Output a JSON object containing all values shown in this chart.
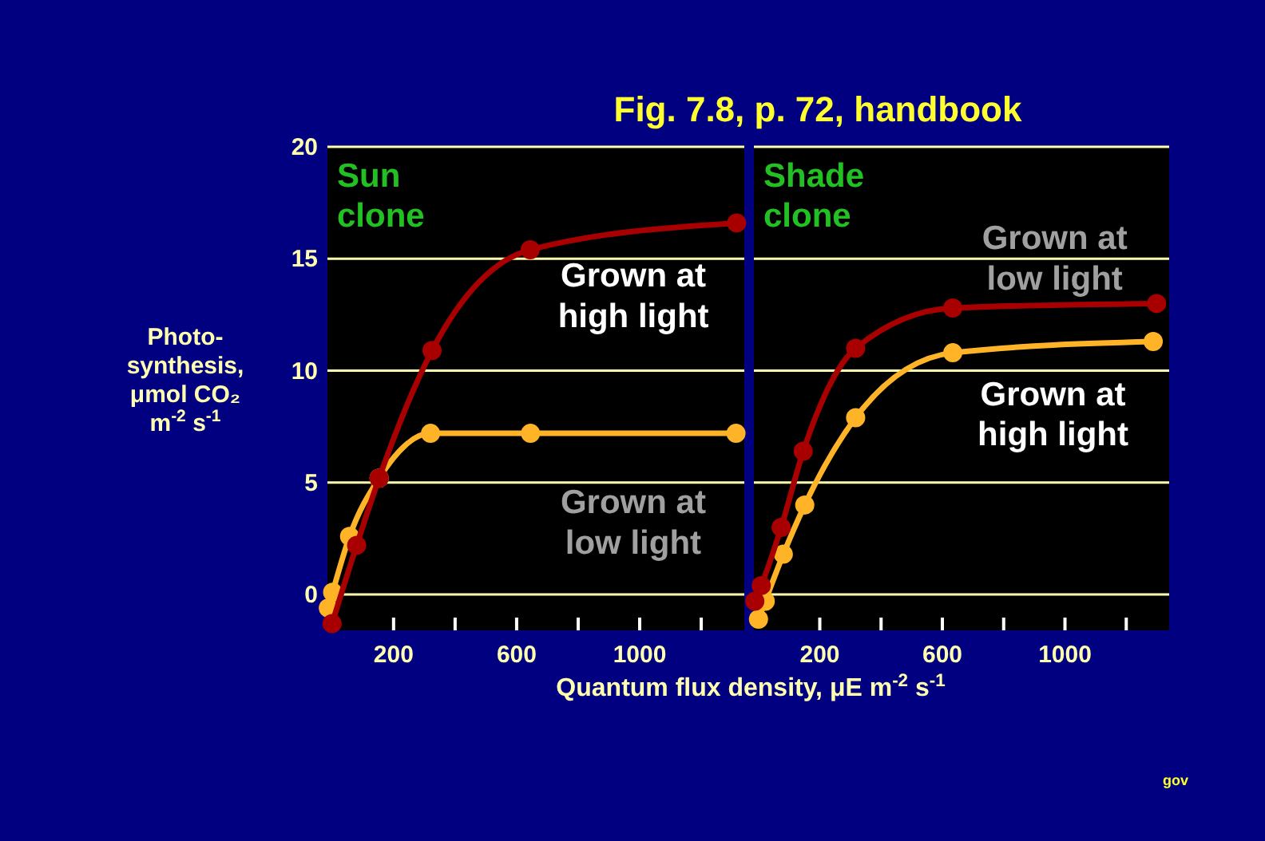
{
  "chart_data": [
    {
      "type": "line",
      "title": "Sun clone",
      "xlabel": "Quantum flux density, μE m$^{-2}$ s$^{-1}$",
      "ylabel": "Photo-\nsynthesis,\nμmol CO₂\nm$^{-2}$ s$^{-1}$",
      "annotations": [
        "Fig. 7.8, p. 72, handbook"
      ],
      "series": [
        {
          "name": "Grown at\nhigh light",
          "color": "#a80000",
          "x": [
            0,
            80,
            153,
            325,
            644,
            1315
          ],
          "values": [
            -1.3,
            2.2,
            5.2,
            10.9,
            15.4,
            16.6
          ]
        },
        {
          "name": "Grown at\nlow light",
          "color": "#ffb428",
          "x": [
            -12,
            2,
            57,
            153,
            320,
            645,
            1313
          ],
          "values": [
            -0.6,
            0.1,
            2.6,
            5.2,
            7.2,
            7.2,
            7.2
          ]
        }
      ],
      "xlim": [
        -15,
        1340
      ],
      "xticks": [
        200,
        {
          "value": 400,
          "label": null
        },
        600,
        {
          "value": 800,
          "label": null
        },
        1000,
        {
          "value": 1200,
          "label": null
        }
      ],
      "ylim": [
        -1.6,
        20
      ],
      "yticks": [
        0,
        5,
        10,
        15,
        20
      ],
      "grid": "y",
      "marker": "circle",
      "line_style": "solid"
    },
    {
      "type": "line",
      "title": "Shade clone",
      "annotations": [
        "gov"
      ],
      "series": [
        {
          "name": "Grown at\nlow light",
          "color": "#a80000",
          "x": [
            -12,
            9,
            74,
            146,
            317,
            634,
            1299
          ],
          "values": [
            -0.3,
            0.4,
            3.0,
            6.4,
            11.0,
            12.8,
            13.0
          ]
        },
        {
          "name": "Grown at\nhigh light",
          "color": "#ffb428",
          "x": [
            0,
            22,
            81,
            151,
            317,
            634,
            1288
          ],
          "values": [
            -1.1,
            -0.3,
            1.8,
            4.0,
            7.9,
            10.8,
            11.3
          ]
        }
      ],
      "xlim": [
        -15,
        1340
      ],
      "xticks": [
        200,
        {
          "value": 400,
          "label": null
        },
        600,
        {
          "value": 800,
          "label": null
        },
        1000,
        {
          "value": 1200,
          "label": null
        }
      ],
      "ylim": [
        -1.6,
        20
      ],
      "yticks": [
        0,
        5,
        10,
        15,
        20
      ],
      "tick_labels": "x",
      "grid": "y",
      "marker": "circle",
      "line_style": "solid"
    }
  ]
}
